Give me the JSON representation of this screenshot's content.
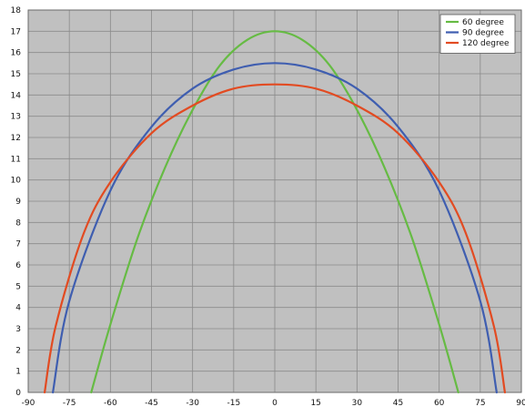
{
  "chart_data": {
    "type": "line",
    "title": "",
    "xlabel": "",
    "ylabel": "",
    "xlim": [
      -90,
      90
    ],
    "ylim": [
      0,
      18
    ],
    "x_ticks": [
      -90,
      -75,
      -60,
      -45,
      -30,
      -15,
      0,
      15,
      30,
      45,
      60,
      75,
      90
    ],
    "x_tick_labels": [
      "-90",
      "-75",
      "-60",
      "-45",
      "-30",
      "-15",
      "0",
      "15",
      "30",
      "45",
      "60",
      "75",
      "90"
    ],
    "y_ticks": [
      0,
      1,
      2,
      3,
      4,
      5,
      6,
      7,
      8,
      9,
      10,
      11,
      12,
      13,
      14,
      15,
      16,
      17,
      18
    ],
    "y_tick_labels": [
      "0",
      "1",
      "2",
      "3",
      "4",
      "5",
      "6",
      "7",
      "8",
      "9",
      "10",
      "11",
      "12",
      "13",
      "14",
      "15",
      "16",
      "17",
      "18"
    ],
    "grid": true,
    "legend_position": "top-right",
    "plot_background": "#c0c0c0",
    "grid_color": "#8a8a8a",
    "series": [
      {
        "name": "60 degree",
        "color": "#66bb44",
        "x": [
          -67,
          -60,
          -50,
          -40,
          -30,
          -20,
          -10,
          0,
          10,
          20,
          30,
          40,
          50,
          60,
          67
        ],
        "y": [
          0,
          3.2,
          7.3,
          10.6,
          13.3,
          15.4,
          16.6,
          17.0,
          16.6,
          15.4,
          13.3,
          10.6,
          7.3,
          3.2,
          0
        ]
      },
      {
        "name": "90 degree",
        "color": "#3f5eb0",
        "x": [
          -81,
          -75,
          -60,
          -45,
          -30,
          -15,
          0,
          15,
          30,
          45,
          60,
          75,
          81
        ],
        "y": [
          0,
          4.3,
          9.5,
          12.5,
          14.3,
          15.2,
          15.5,
          15.2,
          14.3,
          12.5,
          9.5,
          4.3,
          0
        ]
      },
      {
        "name": "120 degree",
        "color": "#e24b22",
        "x": [
          -84,
          -80,
          -70,
          -60,
          -45,
          -30,
          -15,
          0,
          15,
          30,
          45,
          60,
          70,
          80,
          84
        ],
        "y": [
          0,
          3.1,
          7.4,
          9.9,
          12.2,
          13.5,
          14.3,
          14.5,
          14.3,
          13.5,
          12.2,
          9.9,
          7.4,
          3.1,
          0
        ]
      }
    ]
  }
}
